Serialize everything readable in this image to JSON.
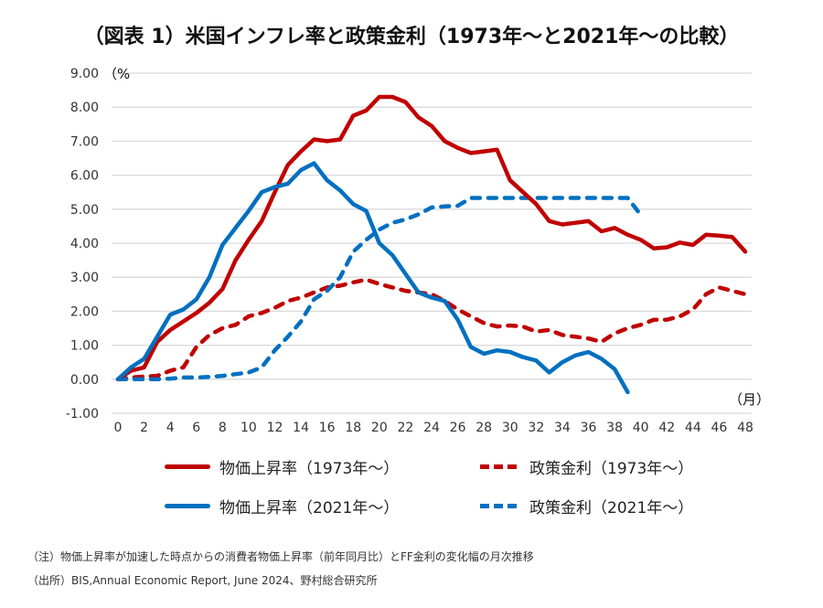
{
  "chart_data": {
    "type": "line",
    "title": "（図表 1）米国インフレ率と政策金利（1973年～と2021年～の比較）",
    "ylabel": "（%",
    "xlabel": "（月）",
    "ylim": [
      -1,
      9
    ],
    "yticks": [
      "9.00",
      "8.00",
      "7.00",
      "6.00",
      "5.00",
      "4.00",
      "3.00",
      "2.00",
      "1.00",
      "0.00",
      "-1.00"
    ],
    "ytick_values": [
      9,
      8,
      7,
      6,
      5,
      4,
      3,
      2,
      1,
      0,
      -1
    ],
    "xlim": [
      0,
      48
    ],
    "xticks": [
      "0",
      "2",
      "4",
      "6",
      "8",
      "10",
      "12",
      "14",
      "16",
      "18",
      "20",
      "22",
      "24",
      "26",
      "28",
      "30",
      "32",
      "34",
      "36",
      "38",
      "40",
      "42",
      "44",
      "46",
      "48"
    ],
    "xtick_values": [
      0,
      2,
      4,
      6,
      8,
      10,
      12,
      14,
      16,
      18,
      20,
      22,
      24,
      26,
      28,
      30,
      32,
      34,
      36,
      38,
      40,
      42,
      44,
      46,
      48
    ],
    "grid": true,
    "legend_position": "bottom",
    "series": [
      {
        "name": "物価上昇率（1973年～）",
        "style": "solid",
        "color": "#C00000",
        "x": [
          0,
          1,
          2,
          3,
          4,
          5,
          6,
          7,
          8,
          9,
          10,
          11,
          12,
          13,
          14,
          15,
          16,
          17,
          18,
          19,
          20,
          21,
          22,
          23,
          24,
          25,
          26,
          27,
          28,
          29,
          30,
          31,
          32,
          33,
          34,
          35,
          36,
          37,
          38,
          39,
          40,
          41,
          42,
          43,
          44,
          45,
          46,
          47,
          48
        ],
        "values": [
          0,
          0.25,
          0.35,
          1.1,
          1.45,
          1.7,
          1.95,
          2.25,
          2.65,
          3.5,
          4.1,
          4.65,
          5.5,
          6.3,
          6.7,
          7.05,
          7.0,
          7.05,
          7.75,
          7.9,
          8.3,
          8.3,
          8.15,
          7.7,
          7.45,
          7.0,
          6.8,
          6.65,
          6.7,
          6.75,
          5.85,
          5.5,
          5.15,
          4.65,
          4.55,
          4.6,
          4.65,
          4.35,
          4.45,
          4.25,
          4.1,
          3.85,
          3.88,
          4.02,
          3.95,
          4.25,
          4.22,
          4.18,
          3.75
        ]
      },
      {
        "name": "政策金利（1973年～）",
        "style": "dashed",
        "color": "#C00000",
        "x": [
          0,
          1,
          2,
          3,
          4,
          5,
          6,
          7,
          8,
          9,
          10,
          11,
          12,
          13,
          14,
          15,
          16,
          17,
          18,
          19,
          20,
          21,
          22,
          23,
          24,
          25,
          26,
          27,
          28,
          29,
          30,
          31,
          32,
          33,
          34,
          35,
          36,
          37,
          38,
          39,
          40,
          41,
          42,
          43,
          44,
          45,
          46,
          47,
          48
        ],
        "values": [
          0,
          0.05,
          0.08,
          0.1,
          0.25,
          0.35,
          0.95,
          1.3,
          1.5,
          1.6,
          1.85,
          1.95,
          2.1,
          2.3,
          2.4,
          2.55,
          2.7,
          2.75,
          2.85,
          2.93,
          2.8,
          2.7,
          2.6,
          2.55,
          2.5,
          2.3,
          2.05,
          1.85,
          1.65,
          1.55,
          1.58,
          1.55,
          1.4,
          1.45,
          1.3,
          1.25,
          1.2,
          1.1,
          1.35,
          1.5,
          1.6,
          1.75,
          1.75,
          1.85,
          2.05,
          2.5,
          2.7,
          2.6,
          2.5
        ]
      },
      {
        "name": "物価上昇率（2021年～）",
        "style": "solid",
        "color": "#0070C0",
        "x": [
          0,
          1,
          2,
          3,
          4,
          5,
          6,
          7,
          8,
          9,
          10,
          11,
          12,
          13,
          14,
          15,
          16,
          17,
          18,
          19,
          20,
          21,
          22,
          23,
          24,
          25,
          26,
          27,
          28,
          29,
          30,
          31,
          32,
          33,
          34,
          35,
          36,
          37,
          38,
          39
        ],
        "values": [
          0,
          0.35,
          0.6,
          1.25,
          1.9,
          2.05,
          2.35,
          3.0,
          3.95,
          4.45,
          4.95,
          5.5,
          5.65,
          5.75,
          6.15,
          6.35,
          5.85,
          5.55,
          5.15,
          4.95,
          4.0,
          3.65,
          3.1,
          2.55,
          2.4,
          2.3,
          1.75,
          0.95,
          0.75,
          0.85,
          0.8,
          0.65,
          0.55,
          0.2,
          0.5,
          0.7,
          0.8,
          0.6,
          0.3,
          -0.38
        ]
      },
      {
        "name": "政策金利（2021年～）",
        "style": "dashed",
        "color": "#0070C0",
        "x": [
          0,
          1,
          2,
          3,
          4,
          5,
          6,
          7,
          8,
          9,
          10,
          11,
          12,
          13,
          14,
          15,
          16,
          17,
          18,
          19,
          20,
          21,
          22,
          23,
          24,
          25,
          26,
          27,
          28,
          29,
          30,
          31,
          32,
          33,
          34,
          35,
          36,
          37,
          38,
          39,
          40
        ],
        "values": [
          0,
          0,
          0,
          0,
          0.02,
          0.05,
          0.05,
          0.07,
          0.1,
          0.15,
          0.2,
          0.35,
          0.85,
          1.25,
          1.7,
          2.35,
          2.6,
          3.0,
          3.75,
          4.1,
          4.4,
          4.6,
          4.7,
          4.85,
          5.05,
          5.08,
          5.1,
          5.33,
          5.33,
          5.33,
          5.33,
          5.33,
          5.33,
          5.33,
          5.33,
          5.33,
          5.33,
          5.33,
          5.33,
          5.33,
          4.83
        ]
      }
    ]
  },
  "legend": [
    {
      "label": "物価上昇率（1973年～）",
      "swatch": "solid-red"
    },
    {
      "label": "政策金利（1973年～）",
      "swatch": "dash-red"
    },
    {
      "label": "物価上昇率（2021年～）",
      "swatch": "solid-blue"
    },
    {
      "label": "政策金利（2021年～）",
      "swatch": "dash-blue"
    }
  ],
  "notes": {
    "note": "（注）物価上昇率が加速した時点からの消費者物価上昇率（前年同月比）とFF金利の変化幅の月次推移",
    "source": "（出所）BIS,Annual Economic Report, June 2024、野村総合研究所"
  }
}
